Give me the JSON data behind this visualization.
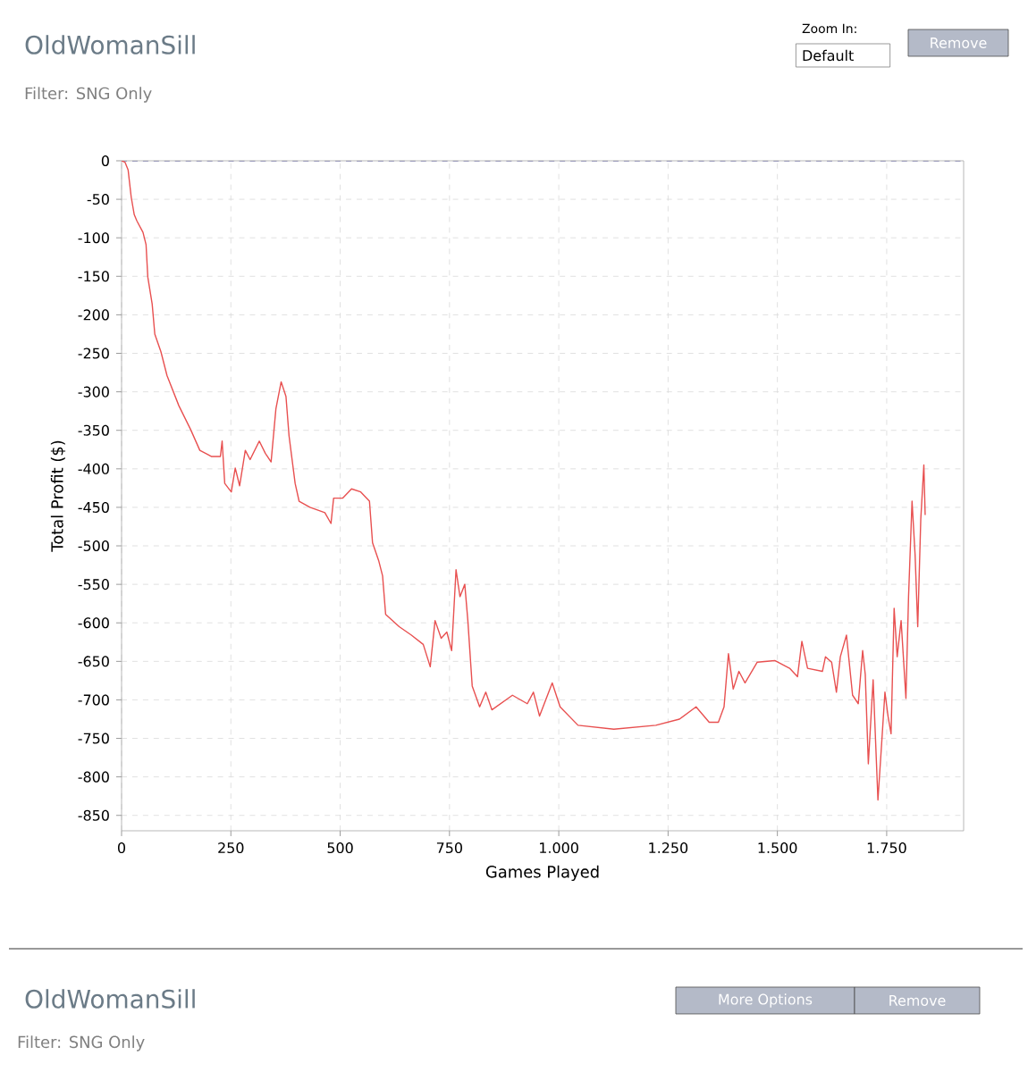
{
  "chart_data": {
    "type": "line",
    "title": "OldWomanSill",
    "subtitle": "Filter: SNG Only",
    "xlabel": "Games Played",
    "ylabel": "Total Profit ($)",
    "annotations": [
      "Zoom In:",
      "Default",
      "Remove",
      "OldWomanSill",
      "Filter: SNG Only",
      "More Options",
      "Remove"
    ],
    "xlim": [
      0,
      1926
    ],
    "ylim": [
      -870,
      0
    ],
    "xticks": [
      0,
      250,
      500,
      750,
      {
        "value": 1000,
        "label": "1.000"
      },
      {
        "value": 1250,
        "label": "1.250"
      },
      {
        "value": 1500,
        "label": "1.500"
      },
      {
        "value": 1750,
        "label": "1.750"
      }
    ],
    "yticks": [
      0,
      -50,
      -100,
      -150,
      -200,
      -250,
      -300,
      -350,
      -400,
      -450,
      -500,
      -550,
      -600,
      -650,
      -700,
      -750,
      -800,
      -850
    ],
    "grid": true,
    "marker": "none",
    "line_style": "solid",
    "ref_lines": [
      {
        "axis": "y",
        "value": 0,
        "label": null,
        "color": "#6a6aa8",
        "line_style": "dashed"
      }
    ],
    "series": [
      {
        "color": "#e85050",
        "x": [
          0,
          8,
          15,
          22,
          29,
          35,
          49,
          56,
          60,
          70,
          76,
          90,
          104,
          131,
          158,
          179,
          206,
          226,
          230,
          236,
          251,
          260,
          270,
          283,
          294,
          315,
          329,
          342,
          353,
          365,
          376,
          383,
          397,
          406,
          431,
          465,
          479,
          485,
          506,
          526,
          547,
          567,
          574,
          588,
          597,
          604,
          635,
          663,
          690,
          706,
          717,
          731,
          744,
          755,
          765,
          774,
          785,
          792,
          802,
          819,
          833,
          847,
          894,
          928,
          942,
          956,
          985,
          1003,
          1044,
          1126,
          1222,
          1276,
          1314,
          1344,
          1365,
          1378,
          1388,
          1399,
          1412,
          1426,
          1454,
          1494,
          1528,
          1546,
          1556,
          1569,
          1603,
          1610,
          1624,
          1635,
          1644,
          1658,
          1672,
          1685,
          1695,
          1701,
          1708,
          1719,
          1730,
          1739,
          1746,
          1753,
          1760,
          1767,
          1774,
          1783,
          1794,
          1800,
          1808,
          1815,
          1821,
          1828,
          1835,
          1838
        ],
        "values": [
          0,
          -2,
          -12,
          -47,
          -70,
          -78,
          -93,
          -109,
          -151,
          -186,
          -225,
          -248,
          -279,
          -318,
          -349,
          -376,
          -384,
          -384,
          -364,
          -419,
          -430,
          -399,
          -422,
          -376,
          -388,
          -364,
          -380,
          -391,
          -322,
          -287,
          -306,
          -357,
          -419,
          -442,
          -450,
          -457,
          -471,
          -438,
          -438,
          -426,
          -430,
          -442,
          -496,
          -519,
          -539,
          -589,
          -605,
          -616,
          -628,
          -657,
          -597,
          -620,
          -612,
          -636,
          -531,
          -566,
          -550,
          -597,
          -682,
          -709,
          -690,
          -713,
          -694,
          -705,
          -690,
          -721,
          -678,
          -709,
          -733,
          -738,
          -733,
          -725,
          -709,
          -729,
          -729,
          -709,
          -640,
          -686,
          -663,
          -678,
          -651,
          -649,
          -659,
          -670,
          -624,
          -659,
          -663,
          -644,
          -651,
          -690,
          -644,
          -616,
          -694,
          -705,
          -636,
          -667,
          -783,
          -674,
          -830,
          -752,
          -690,
          -721,
          -744,
          -581,
          -644,
          -597,
          -698,
          -566,
          -442,
          -512,
          -605,
          -465,
          -395,
          -460
        ]
      }
    ]
  }
}
